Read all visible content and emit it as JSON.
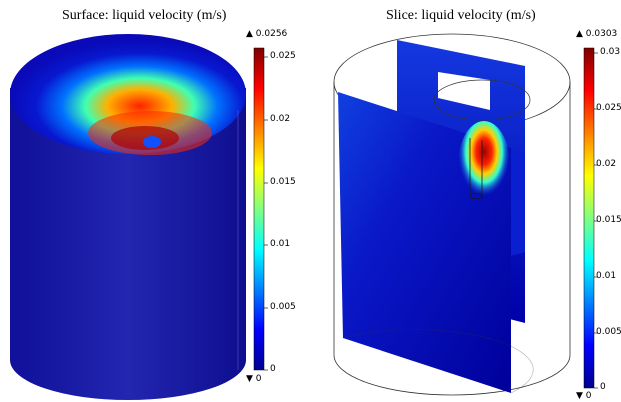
{
  "left_plot": {
    "title": "Surface: liquid velocity (m/s)",
    "max_marker": "▲ 0.0256",
    "min_marker": "▼ 0",
    "colorbar_ticks": [
      "0.025",
      "0.02",
      "0.015",
      "0.01",
      "0.005",
      "0"
    ]
  },
  "right_plot": {
    "title": "Slice: liquid velocity (m/s)",
    "max_marker": "▲ 0.0303",
    "min_marker": "▼ 0",
    "colorbar_ticks": [
      "0.03",
      "0.025",
      "0.02",
      "0.015",
      "0.01",
      "0.005",
      "0"
    ]
  },
  "colormap": [
    "#00008f",
    "#0000ff",
    "#00ffff",
    "#ffff00",
    "#ff0000",
    "#800000"
  ]
}
